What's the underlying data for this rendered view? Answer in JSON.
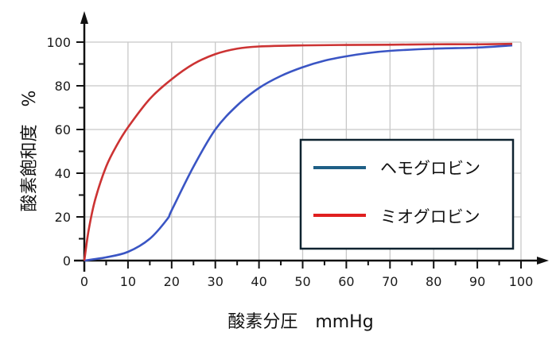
{
  "chart_data": {
    "type": "line",
    "title": "",
    "xlabel": "酸素分圧 mmHg",
    "ylabel": "酸素飽和度 %",
    "xlim": [
      0,
      100
    ],
    "ylim": [
      0,
      100
    ],
    "x_ticks": [
      0,
      10,
      20,
      30,
      40,
      50,
      60,
      70,
      80,
      90,
      100
    ],
    "y_ticks": [
      0,
      20,
      40,
      60,
      80,
      100
    ],
    "x_minor_ticks": [
      5,
      15,
      25,
      35,
      45,
      55,
      65,
      75,
      85,
      95
    ],
    "y_minor_ticks": [
      10,
      30,
      50,
      70,
      90
    ],
    "grid": true,
    "legend_position": "lower right",
    "series": [
      {
        "name": "ヘモグロビン",
        "color": "#3a55c4",
        "legend_color": "#1f5f86",
        "x": [
          0,
          5,
          10,
          15,
          19,
          20,
          25,
          30,
          35,
          40,
          45,
          50,
          55,
          60,
          65,
          70,
          80,
          90,
          98
        ],
        "y": [
          0,
          1.5,
          4,
          10,
          19,
          23,
          43,
          60,
          71,
          79,
          84.5,
          88.5,
          91.5,
          93.5,
          95,
          96,
          97,
          97.5,
          98.5
        ]
      },
      {
        "name": "ミオグロビン",
        "color": "#cc3333",
        "legend_color": "#e01f1f",
        "x": [
          0,
          1,
          2.5,
          5,
          7.5,
          10,
          15,
          20,
          25,
          30,
          35,
          40,
          50,
          60,
          70,
          80,
          90,
          98
        ],
        "y": [
          0,
          14,
          28,
          43,
          53,
          61,
          74,
          83,
          90,
          94.5,
          97,
          98,
          98.5,
          98.7,
          98.8,
          99,
          99,
          99.2
        ]
      }
    ]
  },
  "axes": {
    "xlabel": "酸素分圧　mmHg",
    "ylabel": "酸素飽和度　%"
  },
  "legend": {
    "items": [
      {
        "label": "ヘモグロビン",
        "color": "#1f5f86"
      },
      {
        "label": "ミオグロビン",
        "color": "#e01f1f"
      }
    ]
  }
}
